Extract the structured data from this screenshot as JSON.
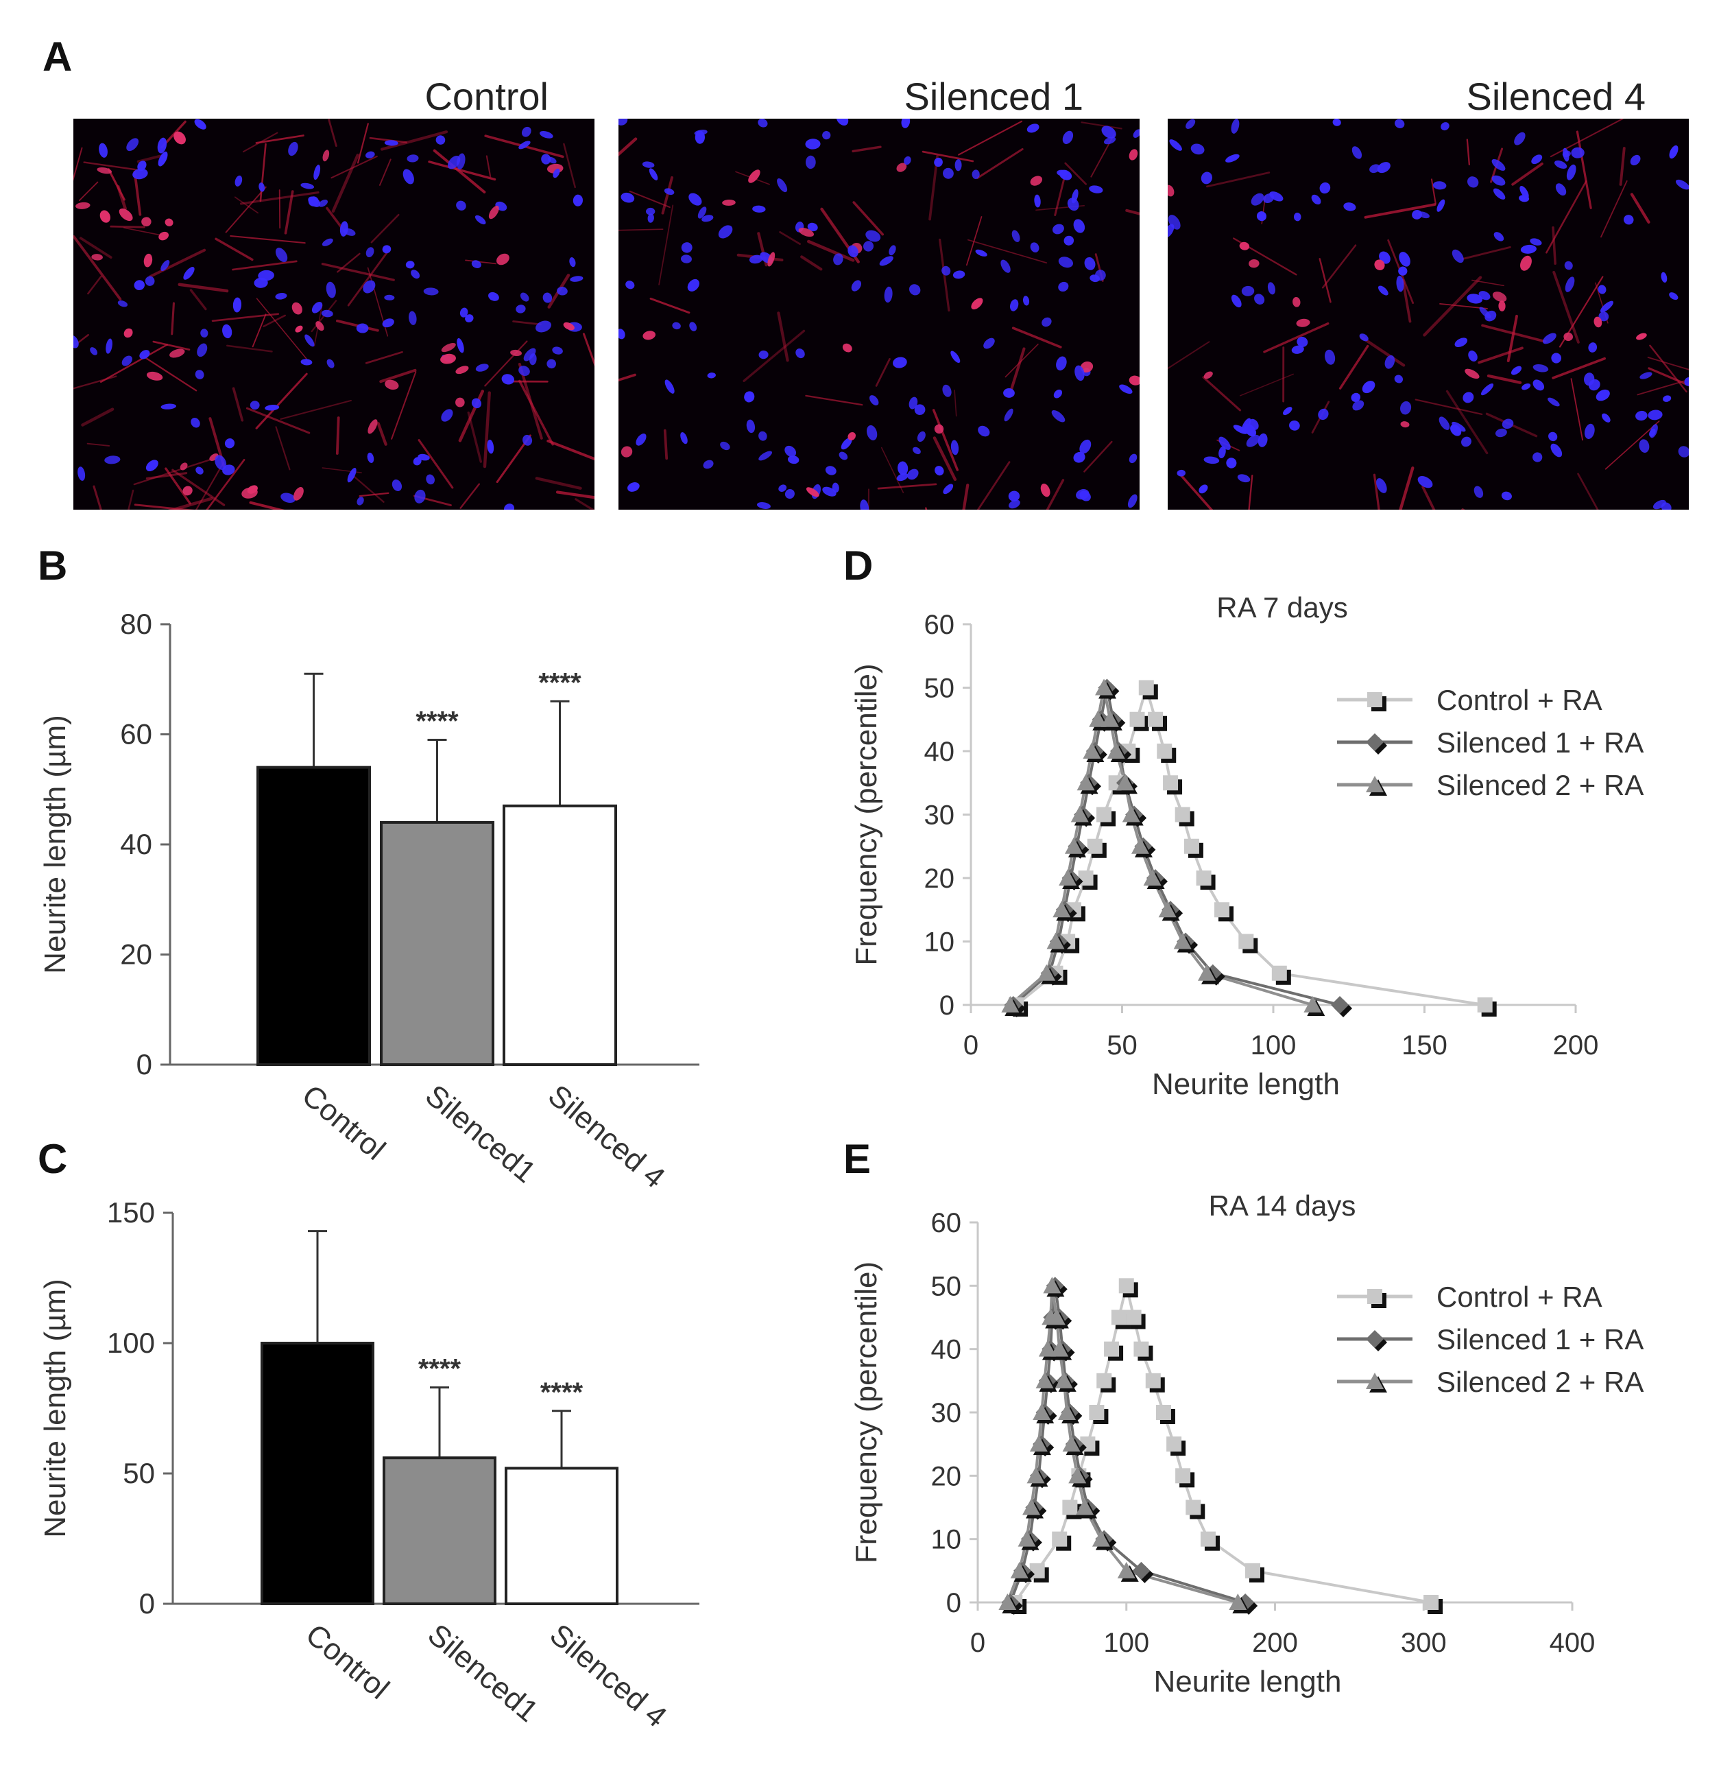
{
  "panel_letters": [
    "A",
    "B",
    "C",
    "D",
    "E"
  ],
  "micrographs": [
    {
      "title": "Control",
      "red_density": 0.75
    },
    {
      "title": "Silenced 1",
      "red_density": 0.35
    },
    {
      "title": "Silenced 4",
      "red_density": 0.4
    }
  ],
  "colors": {
    "micro_bg": "#060006",
    "nucleus_blue": "#3b2cff",
    "cytoplasm_red": "#c41a3c",
    "bar_control": "#000000",
    "bar_silenced1": "#8c8c8c",
    "bar_silenced4": "#ffffff",
    "series_control": "#c8c8c8",
    "series_silenced1": "#6e6e6e",
    "series_silenced2": "#8f8f8f",
    "axis": "#666666"
  },
  "chart_data": [
    {
      "id": "B",
      "type": "bar",
      "categories": [
        "Control",
        "Silenced1",
        "Silenced 4"
      ],
      "values": [
        54,
        44,
        47
      ],
      "errors": [
        17,
        15,
        19
      ],
      "significance": [
        "",
        "****",
        "****"
      ],
      "ylabel": "Neurite length (µm)",
      "ylim": [
        0,
        80
      ],
      "yticks": [
        "0",
        "20",
        "40",
        "60",
        "80"
      ],
      "legend": "none",
      "grid": false
    },
    {
      "id": "C",
      "type": "bar",
      "categories": [
        "Control",
        "Silenced1",
        "Silenced 4"
      ],
      "values": [
        100,
        56,
        52
      ],
      "errors": [
        43,
        27,
        22
      ],
      "significance": [
        "",
        "****",
        "****"
      ],
      "ylabel": "Neurite length (µm)",
      "ylim": [
        0,
        150
      ],
      "yticks": [
        "0",
        "50",
        "100",
        "150"
      ],
      "legend": "none",
      "grid": false
    },
    {
      "id": "D",
      "type": "line",
      "title": "RA 7 days",
      "xlabel": "Neurite length",
      "ylabel": "Frequency (percentile)",
      "xlim": [
        0,
        200
      ],
      "ylim": [
        0,
        60
      ],
      "xticks": [
        "0",
        "50",
        "100",
        "150",
        "200"
      ],
      "yticks": [
        "0",
        "10",
        "20",
        "30",
        "40",
        "50",
        "60"
      ],
      "legend": "top-right",
      "grid": false,
      "series": [
        {
          "name": "Control + RA",
          "marker": "square",
          "points": [
            [
              15,
              0
            ],
            [
              28,
              5
            ],
            [
              32,
              10
            ],
            [
              34,
              15
            ],
            [
              38,
              20
            ],
            [
              41,
              25
            ],
            [
              44,
              30
            ],
            [
              48,
              35
            ],
            [
              52,
              40
            ],
            [
              55,
              45
            ],
            [
              58,
              50
            ],
            [
              61,
              45
            ],
            [
              64,
              40
            ],
            [
              66,
              35
            ],
            [
              70,
              30
            ],
            [
              73,
              25
            ],
            [
              77,
              20
            ],
            [
              83,
              15
            ],
            [
              91,
              10
            ],
            [
              102,
              5
            ],
            [
              170,
              0
            ]
          ]
        },
        {
          "name": "Silenced 1 + RA",
          "marker": "diamond",
          "points": [
            [
              14,
              0
            ],
            [
              26,
              5
            ],
            [
              29,
              10
            ],
            [
              31,
              15
            ],
            [
              33,
              20
            ],
            [
              35,
              25
            ],
            [
              37,
              30
            ],
            [
              39,
              35
            ],
            [
              41,
              40
            ],
            [
              43,
              45
            ],
            [
              45,
              50
            ],
            [
              47,
              45
            ],
            [
              49,
              40
            ],
            [
              51,
              35
            ],
            [
              54,
              30
            ],
            [
              57,
              25
            ],
            [
              61,
              20
            ],
            [
              66,
              15
            ],
            [
              71,
              10
            ],
            [
              80,
              5
            ],
            [
              122,
              0
            ]
          ]
        },
        {
          "name": "Silenced 2 + RA",
          "marker": "triangle",
          "points": [
            [
              13,
              0
            ],
            [
              25,
              5
            ],
            [
              28,
              10
            ],
            [
              30,
              15
            ],
            [
              32,
              20
            ],
            [
              34,
              25
            ],
            [
              36,
              30
            ],
            [
              38,
              35
            ],
            [
              40,
              40
            ],
            [
              42,
              45
            ],
            [
              44,
              50
            ],
            [
              46,
              45
            ],
            [
              48,
              40
            ],
            [
              51,
              35
            ],
            [
              53,
              30
            ],
            [
              56,
              25
            ],
            [
              60,
              20
            ],
            [
              65,
              15
            ],
            [
              70,
              10
            ],
            [
              78,
              5
            ],
            [
              113,
              0
            ]
          ]
        }
      ]
    },
    {
      "id": "E",
      "type": "line",
      "title": "RA 14 days",
      "xlabel": "Neurite length",
      "ylabel": "Frequency (percentile)",
      "xlim": [
        0,
        400
      ],
      "ylim": [
        0,
        60
      ],
      "xticks": [
        "0",
        "100",
        "200",
        "300",
        "400"
      ],
      "yticks": [
        "0",
        "10",
        "20",
        "30",
        "40",
        "50",
        "60"
      ],
      "legend": "top-right",
      "grid": false,
      "series": [
        {
          "name": "Control + RA",
          "marker": "square",
          "points": [
            [
              25,
              0
            ],
            [
              40,
              5
            ],
            [
              55,
              10
            ],
            [
              62,
              15
            ],
            [
              68,
              20
            ],
            [
              74,
              25
            ],
            [
              80,
              30
            ],
            [
              85,
              35
            ],
            [
              90,
              40
            ],
            [
              95,
              45
            ],
            [
              100,
              50
            ],
            [
              105,
              45
            ],
            [
              110,
              40
            ],
            [
              118,
              35
            ],
            [
              125,
              30
            ],
            [
              132,
              25
            ],
            [
              138,
              20
            ],
            [
              145,
              15
            ],
            [
              155,
              10
            ],
            [
              185,
              5
            ],
            [
              305,
              0
            ]
          ]
        },
        {
          "name": "Silenced 1 + RA",
          "marker": "diamond",
          "points": [
            [
              22,
              0
            ],
            [
              30,
              5
            ],
            [
              35,
              10
            ],
            [
              38,
              15
            ],
            [
              41,
              20
            ],
            [
              43,
              25
            ],
            [
              45,
              30
            ],
            [
              47,
              35
            ],
            [
              49,
              40
            ],
            [
              50,
              45
            ],
            [
              52,
              50
            ],
            [
              55,
              45
            ],
            [
              57,
              40
            ],
            [
              59,
              35
            ],
            [
              62,
              30
            ],
            [
              65,
              25
            ],
            [
              69,
              20
            ],
            [
              74,
              15
            ],
            [
              85,
              10
            ],
            [
              110,
              5
            ],
            [
              180,
              0
            ]
          ]
        },
        {
          "name": "Silenced 2 + RA",
          "marker": "triangle",
          "points": [
            [
              20,
              0
            ],
            [
              28,
              5
            ],
            [
              33,
              10
            ],
            [
              36,
              15
            ],
            [
              39,
              20
            ],
            [
              41,
              25
            ],
            [
              43,
              30
            ],
            [
              45,
              35
            ],
            [
              47,
              40
            ],
            [
              49,
              45
            ],
            [
              50,
              50
            ],
            [
              53,
              45
            ],
            [
              55,
              40
            ],
            [
              58,
              35
            ],
            [
              60,
              30
            ],
            [
              63,
              25
            ],
            [
              67,
              20
            ],
            [
              72,
              15
            ],
            [
              83,
              10
            ],
            [
              100,
              5
            ],
            [
              175,
              0
            ]
          ]
        }
      ]
    }
  ]
}
